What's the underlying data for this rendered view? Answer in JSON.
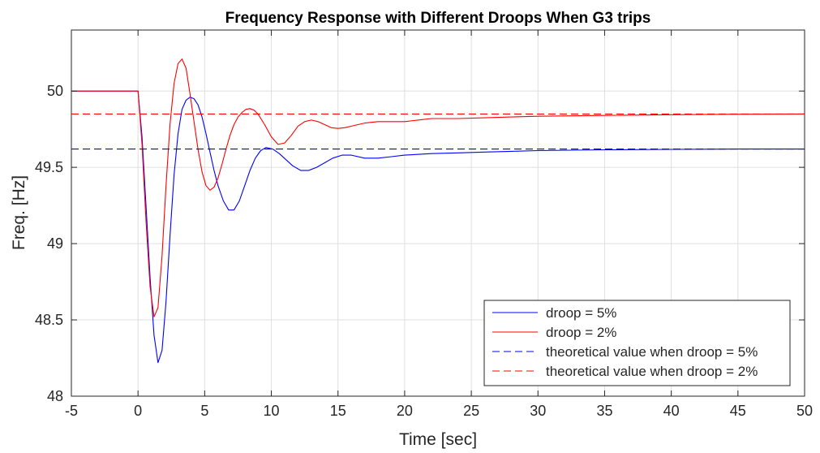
{
  "chart_data": {
    "type": "line",
    "title": "Frequency Response with Different Droops When G3 trips",
    "xlabel": "Time [sec]",
    "ylabel": "Freq. [Hz]",
    "xlim": [
      -5,
      50
    ],
    "ylim": [
      48,
      50.4
    ],
    "xticks": [
      -5,
      0,
      5,
      10,
      15,
      20,
      25,
      30,
      35,
      40,
      45,
      50
    ],
    "yticks": [
      48,
      48.5,
      49,
      49.5,
      50
    ],
    "grid": true,
    "legend_position": "bottom-right",
    "series": [
      {
        "name": "droop = 5%",
        "color": "#0000ff",
        "style": "solid",
        "x": [
          -5,
          0,
          0.3,
          0.6,
          0.9,
          1.2,
          1.5,
          1.8,
          2.1,
          2.4,
          2.7,
          3.0,
          3.3,
          3.6,
          3.9,
          4.2,
          4.5,
          4.8,
          5.1,
          5.4,
          5.7,
          6.0,
          6.4,
          6.8,
          7.2,
          7.6,
          8.0,
          8.4,
          8.8,
          9.2,
          9.6,
          10.1,
          10.6,
          11.1,
          11.6,
          12.2,
          12.8,
          13.4,
          14.0,
          14.6,
          15.3,
          16.0,
          17.0,
          18.0,
          19.0,
          20.0,
          22.0,
          24.0,
          26.0,
          28.0,
          30.0,
          35.0,
          40.0,
          45.0,
          50.0
        ],
        "y": [
          50.0,
          50.0,
          49.7,
          49.25,
          48.78,
          48.4,
          48.22,
          48.3,
          48.62,
          49.05,
          49.45,
          49.72,
          49.88,
          49.94,
          49.96,
          49.95,
          49.91,
          49.83,
          49.72,
          49.6,
          49.48,
          49.38,
          49.28,
          49.22,
          49.22,
          49.28,
          49.38,
          49.48,
          49.56,
          49.61,
          49.63,
          49.62,
          49.59,
          49.55,
          49.51,
          49.48,
          49.48,
          49.5,
          49.53,
          49.56,
          49.58,
          49.58,
          49.56,
          49.56,
          49.57,
          49.58,
          49.59,
          49.595,
          49.6,
          49.605,
          49.61,
          49.615,
          49.618,
          49.62,
          49.62
        ]
      },
      {
        "name": "droop = 2%",
        "color": "#ff0000",
        "style": "solid",
        "x": [
          -5,
          0,
          0.3,
          0.6,
          0.9,
          1.2,
          1.5,
          1.8,
          2.1,
          2.4,
          2.7,
          3.0,
          3.3,
          3.6,
          3.9,
          4.2,
          4.5,
          4.8,
          5.1,
          5.4,
          5.7,
          6.0,
          6.3,
          6.6,
          6.9,
          7.2,
          7.5,
          7.8,
          8.1,
          8.4,
          8.7,
          9.0,
          9.5,
          10.0,
          10.5,
          11.0,
          11.5,
          12.0,
          12.5,
          13.0,
          13.5,
          14.0,
          14.5,
          15.0,
          15.5,
          16.0,
          17.0,
          18.0,
          19.0,
          20.0,
          21.0,
          22.0,
          24.0,
          26.0,
          28.0,
          30.0,
          35.0,
          40.0,
          45.0,
          50.0
        ],
        "y": [
          50.0,
          50.0,
          49.65,
          49.15,
          48.72,
          48.52,
          48.58,
          48.92,
          49.38,
          49.78,
          50.05,
          50.18,
          50.21,
          50.15,
          49.98,
          49.8,
          49.62,
          49.47,
          49.38,
          49.35,
          49.37,
          49.43,
          49.52,
          49.62,
          49.71,
          49.78,
          49.83,
          49.86,
          49.88,
          49.885,
          49.875,
          49.85,
          49.78,
          49.7,
          49.65,
          49.66,
          49.71,
          49.77,
          49.8,
          49.81,
          49.8,
          49.78,
          49.76,
          49.755,
          49.76,
          49.77,
          49.79,
          49.8,
          49.8,
          49.8,
          49.81,
          49.82,
          49.82,
          49.825,
          49.83,
          49.835,
          49.84,
          49.845,
          49.848,
          49.85
        ]
      },
      {
        "name": "theoretical value when droop = 5%",
        "color": "#0000ff",
        "style": "dashed",
        "x": [
          -5,
          50
        ],
        "y": [
          49.62,
          49.62
        ]
      },
      {
        "name": "theoretical value when droop = 2%",
        "color": "#ff0000",
        "style": "dashed",
        "x": [
          -5,
          50
        ],
        "y": [
          49.85,
          49.85
        ]
      }
    ]
  }
}
